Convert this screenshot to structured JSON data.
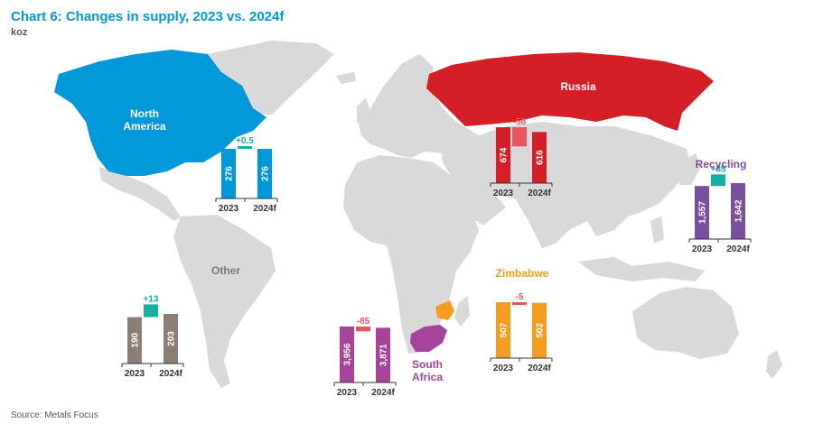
{
  "title": "Chart 6: Changes in supply, 2023 vs. 2024f",
  "unit": "koz",
  "source": "Source: Metals Focus",
  "colors": {
    "background_land": "#d9d9d9",
    "north_america": "#0098d8",
    "russia": "#d31f25",
    "zimbabwe": "#f39c1f",
    "south_africa": "#a6449b",
    "recycling": "#7b4fa0",
    "other": "#8b7e74",
    "increase": "#13b0a3",
    "decrease": "#e9565d"
  },
  "chart_data": [
    {
      "type": "bar",
      "region": "North America",
      "label_lines": [
        "North",
        "America"
      ],
      "categories": [
        "2023",
        "2024f"
      ],
      "start": 276,
      "change": 0.5,
      "change_label": "+0.5",
      "end": 276,
      "start_label": "276",
      "end_label": "276",
      "color": "#0098d8"
    },
    {
      "type": "bar",
      "region": "Russia",
      "label_lines": [
        "Russia"
      ],
      "categories": [
        "2023",
        "2024f"
      ],
      "start": 674,
      "change": -58,
      "change_label": "-58",
      "end": 616,
      "start_label": "674",
      "end_label": "616",
      "color": "#d31f25"
    },
    {
      "type": "bar",
      "region": "Recycling",
      "label_lines": [
        "Recycling"
      ],
      "categories": [
        "2023",
        "2024f"
      ],
      "start": 1557,
      "change": 85,
      "change_label": "+85",
      "end": 1642,
      "start_label": "1,557",
      "end_label": "1,642",
      "color": "#7b4fa0"
    },
    {
      "type": "bar",
      "region": "Zimbabwe",
      "label_lines": [
        "Zimbabwe"
      ],
      "categories": [
        "2023",
        "2024f"
      ],
      "start": 507,
      "change": -5,
      "change_label": "-5",
      "end": 502,
      "start_label": "507",
      "end_label": "502",
      "color": "#f39c1f"
    },
    {
      "type": "bar",
      "region": "South Africa",
      "label_lines": [
        "South",
        "Africa"
      ],
      "categories": [
        "2023",
        "2024f"
      ],
      "start": 3956,
      "change": -85,
      "change_label": "-85",
      "end": 3871,
      "start_label": "3,956",
      "end_label": "3,871",
      "color": "#a6449b"
    },
    {
      "type": "bar",
      "region": "Other",
      "label_lines": [
        "Other"
      ],
      "categories": [
        "2023",
        "2024f"
      ],
      "start": 190,
      "change": 13,
      "change_label": "+13",
      "end": 203,
      "start_label": "190",
      "end_label": "203",
      "color": "#8b7e74"
    }
  ]
}
